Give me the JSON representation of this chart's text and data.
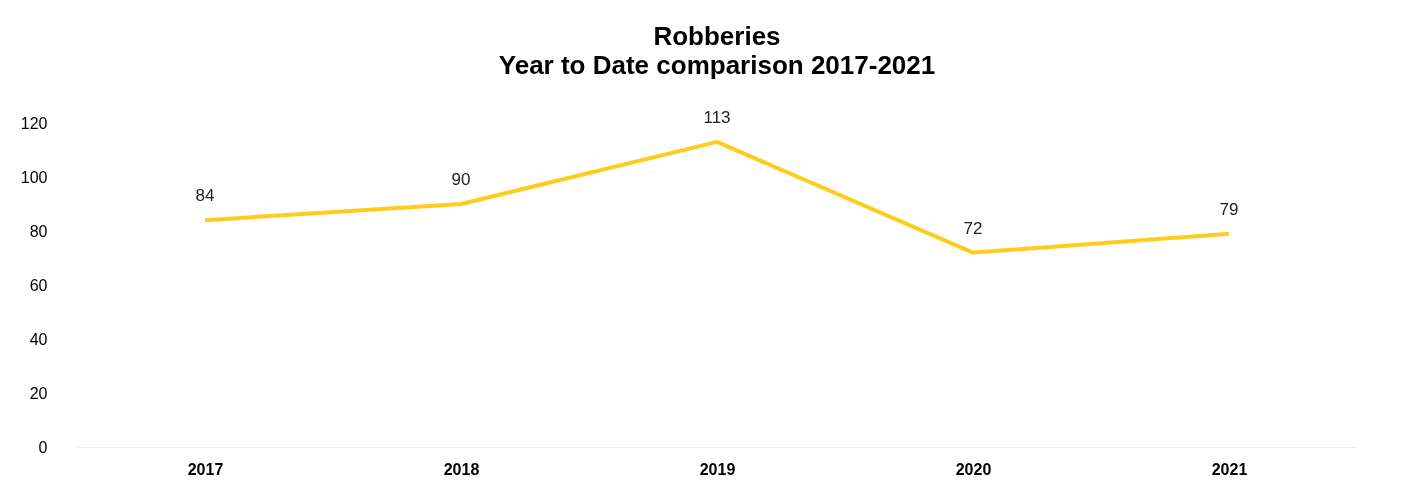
{
  "chart_data": {
    "type": "line",
    "title": "Robberies",
    "subtitle": "Year to Date comparison 2017-2021",
    "categories": [
      "2017",
      "2018",
      "2019",
      "2020",
      "2021"
    ],
    "series": [
      {
        "color": "#ffcc1a",
        "values": [
          84,
          90,
          113,
          72,
          79
        ]
      }
    ],
    "ylim": [
      0,
      120
    ],
    "yticks": [
      0,
      20,
      40,
      60,
      80,
      100,
      120
    ],
    "data_labels": true,
    "grid": false,
    "marker": "none",
    "line_style": "solid"
  }
}
